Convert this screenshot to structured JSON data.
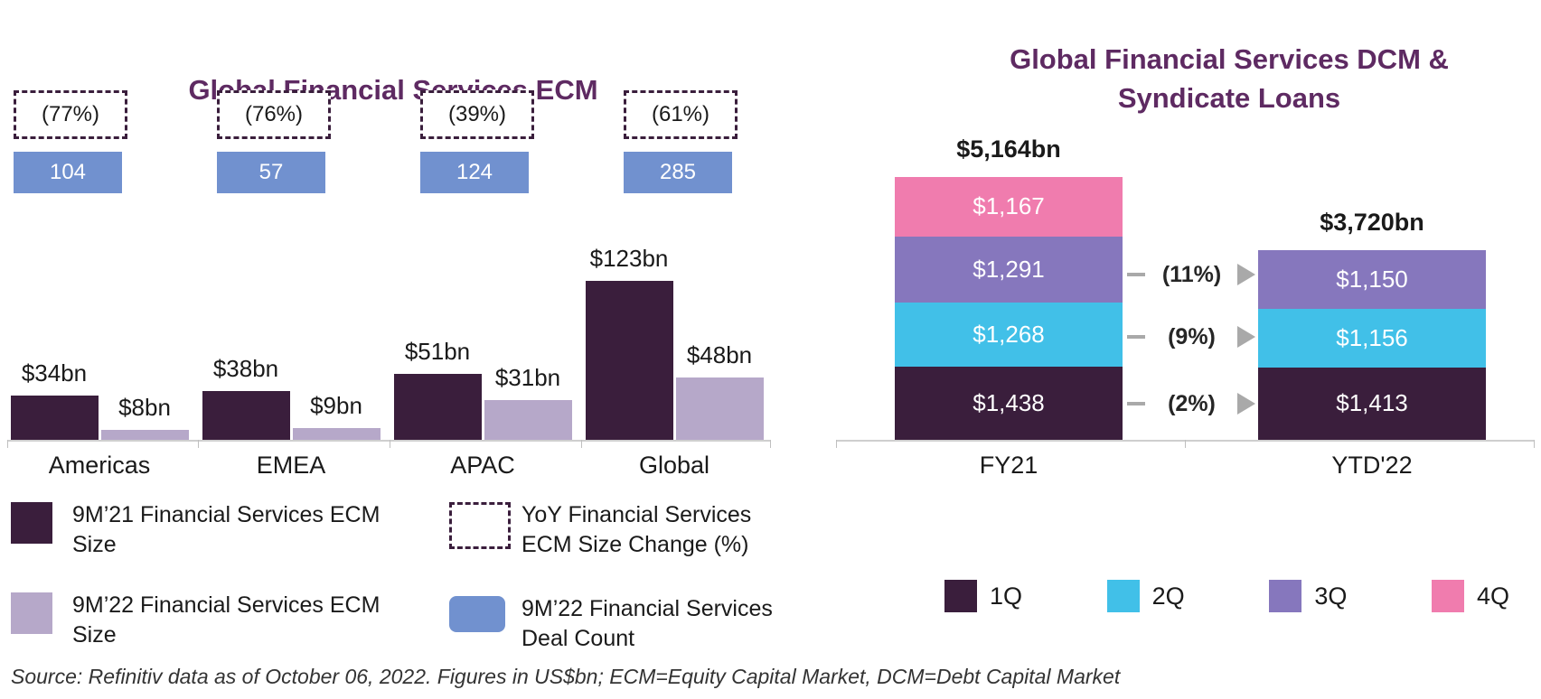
{
  "page": {
    "source_note": "Source: Refinitiv data as of October 06, 2022. Figures in US$bn; ECM=Equity Capital Market, DCM=Debt Capital Market"
  },
  "colors": {
    "dark_purple": "#3A1E3C",
    "light_purple": "#B6A8C9",
    "count_blue": "#7191CF",
    "title_purple": "#5E2A62",
    "q2_blue": "#41C0E8",
    "q3_purple": "#8677BD",
    "q4_pink": "#F07CAE",
    "connector_gray": "#A9A9A9",
    "axis_gray": "#CFCFCF"
  },
  "chart_data": [
    {
      "id": "ecm",
      "type": "bar",
      "title": "Global Financial Services ECM",
      "unit": "US$bn",
      "categories": [
        "Americas",
        "EMEA",
        "APAC",
        "Global"
      ],
      "series": [
        {
          "name": "9M'21 Financial Services ECM Size",
          "color_key": "dark_purple",
          "values": [
            34,
            38,
            51,
            123
          ],
          "value_labels": [
            "$34bn",
            "$38bn",
            "$51bn",
            "$123bn"
          ]
        },
        {
          "name": "9M'22 Financial Services ECM Size",
          "color_key": "light_purple",
          "values": [
            8,
            9,
            31,
            48
          ],
          "value_labels": [
            "$8bn",
            "$9bn",
            "$31bn",
            "$48bn"
          ]
        }
      ],
      "yoy_size_change": [
        "(77%)",
        "(76%)",
        "(39%)",
        "(61%)"
      ],
      "deal_count": [
        "104",
        "57",
        "124",
        "285"
      ],
      "legend": [
        {
          "marker": "solid-dark-square",
          "label": "9M’21 Financial Services ECM Size"
        },
        {
          "marker": "solid-light-square",
          "label": "9M’22 Financial Services ECM Size"
        },
        {
          "marker": "dashed-box",
          "label": "YoY Financial Services ECM Size Change (%)"
        },
        {
          "marker": "blue-rounded-rect",
          "label": "9M’22 Financial Services Deal Count"
        }
      ]
    },
    {
      "id": "dcm",
      "type": "stacked-bar",
      "title": "Global Financial Services DCM & Syndicate Loans",
      "title_lines": [
        "Global Financial Services DCM &",
        "Syndicate Loans"
      ],
      "unit": "US$bn",
      "categories": [
        "FY21",
        "YTD'22"
      ],
      "bar_totals": [
        5164,
        3720
      ],
      "bar_total_labels": [
        "$5,164bn",
        "$3,720bn"
      ],
      "series": [
        {
          "name": "1Q",
          "color_key": "dark_purple",
          "values": [
            1438,
            1413
          ],
          "value_labels": [
            "$1,438",
            "$1,413"
          ]
        },
        {
          "name": "2Q",
          "color_key": "q2_blue",
          "values": [
            1268,
            1156
          ],
          "value_labels": [
            "$1,268",
            "$1,156"
          ]
        },
        {
          "name": "3Q",
          "color_key": "q3_purple",
          "values": [
            1291,
            1150
          ],
          "value_labels": [
            "$1,291",
            "$1,150"
          ]
        },
        {
          "name": "4Q",
          "color_key": "q4_pink",
          "values": [
            1167,
            null
          ],
          "value_labels": [
            "$1,167",
            null
          ]
        }
      ],
      "yoy_changes": [
        {
          "series": "1Q",
          "label": "(2%)"
        },
        {
          "series": "2Q",
          "label": "(9%)"
        },
        {
          "series": "3Q",
          "label": "(11%)"
        }
      ],
      "legend": [
        {
          "label": "1Q",
          "color_key": "dark_purple"
        },
        {
          "label": "2Q",
          "color_key": "q2_blue"
        },
        {
          "label": "3Q",
          "color_key": "q3_purple"
        },
        {
          "label": "4Q",
          "color_key": "q4_pink"
        }
      ]
    }
  ]
}
